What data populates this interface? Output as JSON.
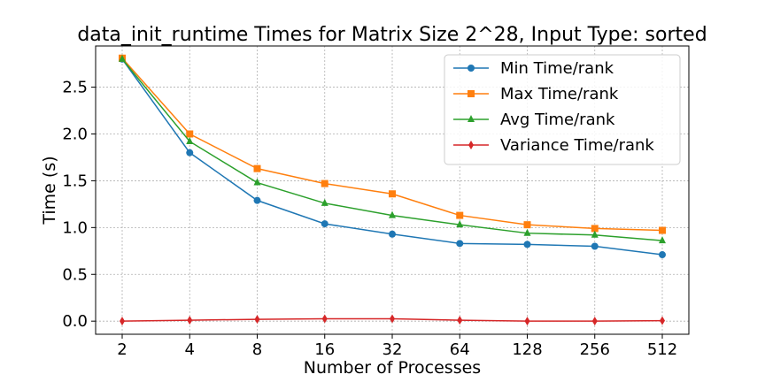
{
  "chart_data": {
    "type": "line",
    "title": "data_init_runtime Times for Matrix Size 2^28, Input Type: sorted",
    "xlabel": "Number of Processes",
    "ylabel": "Time (s)",
    "categories": [
      "2",
      "4",
      "8",
      "16",
      "32",
      "64",
      "128",
      "256",
      "512"
    ],
    "ylim": [
      -0.14,
      2.94
    ],
    "yticks": [
      0.0,
      0.5,
      1.0,
      1.5,
      2.0,
      2.5
    ],
    "ytick_labels": [
      "0.0",
      "0.5",
      "1.0",
      "1.5",
      "2.0",
      "2.5"
    ],
    "grid": true,
    "legend_position": "upper right",
    "series": [
      {
        "name": "Min Time/rank",
        "color": "#1f77b4",
        "marker": "circle",
        "values": [
          2.8,
          1.8,
          1.29,
          1.04,
          0.93,
          0.83,
          0.82,
          0.8,
          0.71
        ]
      },
      {
        "name": "Max Time/rank",
        "color": "#ff7f0e",
        "marker": "square",
        "values": [
          2.81,
          2.0,
          1.63,
          1.47,
          1.36,
          1.13,
          1.03,
          0.99,
          0.97
        ]
      },
      {
        "name": "Avg Time/rank",
        "color": "#2ca02c",
        "marker": "triangle",
        "values": [
          2.8,
          1.92,
          1.48,
          1.26,
          1.13,
          1.03,
          0.94,
          0.92,
          0.86
        ]
      },
      {
        "name": "Variance Time/rank",
        "color": "#d62728",
        "marker": "diamond",
        "values": [
          0.0,
          0.01,
          0.02,
          0.025,
          0.025,
          0.01,
          0.0,
          0.0,
          0.005
        ]
      }
    ]
  }
}
